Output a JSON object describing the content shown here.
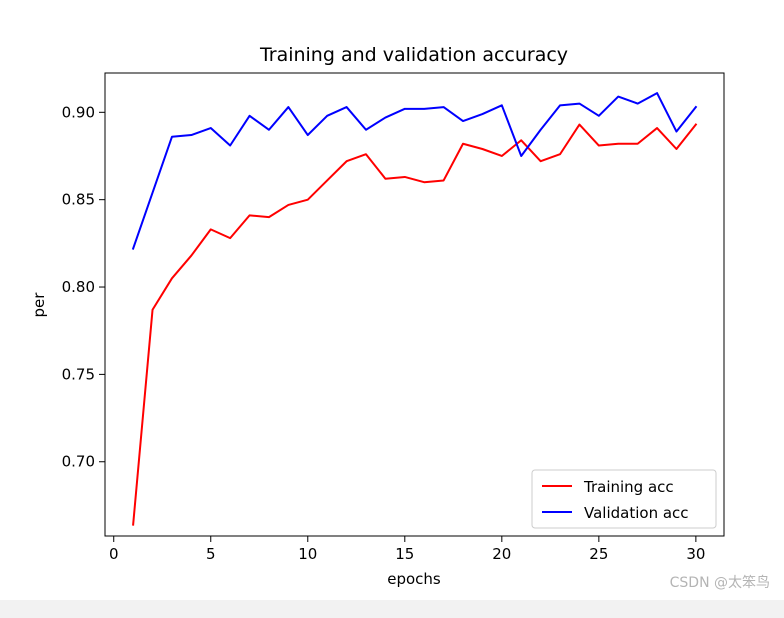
{
  "chart_data": {
    "type": "line",
    "title": "Training and validation accuracy",
    "xlabel": "epochs",
    "ylabel": "per",
    "xlim": [
      -0.45,
      31.45
    ],
    "ylim": [
      0.6575,
      0.9225
    ],
    "xticks": [
      0,
      5,
      10,
      15,
      20,
      25,
      30
    ],
    "yticks": [
      0.7,
      0.75,
      0.8,
      0.85,
      0.9
    ],
    "xtick_labels": [
      "0",
      "5",
      "10",
      "15",
      "20",
      "25",
      "30"
    ],
    "ytick_labels": [
      "0.70",
      "0.75",
      "0.80",
      "0.85",
      "0.90"
    ],
    "grid": false,
    "legend_position": "bottom-right",
    "x": [
      1,
      2,
      3,
      4,
      5,
      6,
      7,
      8,
      9,
      10,
      11,
      12,
      13,
      14,
      15,
      16,
      17,
      18,
      19,
      20,
      21,
      22,
      23,
      24,
      25,
      26,
      27,
      28,
      29,
      30
    ],
    "series": [
      {
        "name": "Training acc",
        "color": "#ff0000",
        "values": [
          0.664,
          0.787,
          0.805,
          0.818,
          0.833,
          0.828,
          0.841,
          0.84,
          0.847,
          0.85,
          0.861,
          0.872,
          0.876,
          0.862,
          0.863,
          0.86,
          0.861,
          0.882,
          0.879,
          0.875,
          0.884,
          0.872,
          0.876,
          0.893,
          0.881,
          0.882,
          0.882,
          0.891,
          0.879,
          0.893
        ]
      },
      {
        "name": "Validation acc",
        "color": "#0000ff",
        "values": [
          0.822,
          0.854,
          0.886,
          0.887,
          0.891,
          0.881,
          0.898,
          0.89,
          0.903,
          0.887,
          0.898,
          0.903,
          0.89,
          0.897,
          0.902,
          0.902,
          0.903,
          0.895,
          0.899,
          0.904,
          0.875,
          0.89,
          0.904,
          0.905,
          0.898,
          0.909,
          0.905,
          0.911,
          0.889,
          0.903
        ]
      }
    ]
  },
  "watermark": "CSDN @太笨鸟"
}
